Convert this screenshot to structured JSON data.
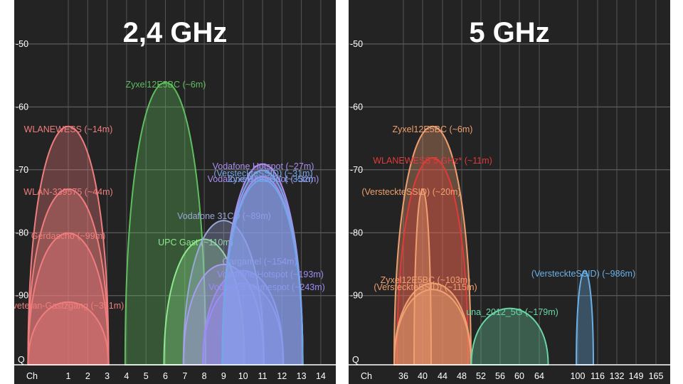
{
  "chart_data": [
    {
      "type": "area",
      "title": "2,4 GHz",
      "x_axis_label": "Ch",
      "y_axis_label": "Q",
      "x_ticks": [
        1,
        2,
        3,
        4,
        5,
        6,
        7,
        8,
        9,
        10,
        11,
        12,
        13,
        14
      ],
      "y_ticks": [
        -50,
        -60,
        -70,
        -80,
        -90
      ],
      "xlim": [
        -1.0,
        14.7
      ],
      "ylim": [
        -101,
        -43
      ],
      "grid": true,
      "series": [
        {
          "name": "WLANEWESS (~14m)",
          "channel": 1,
          "width": 4,
          "dbm": -63,
          "color": "#f07d7d"
        },
        {
          "name": "WLAN-339575 (~44m)",
          "channel": 1,
          "width": 4,
          "dbm": -73,
          "color": "#f07d7d"
        },
        {
          "name": "Gerdascho (~99m)",
          "channel": 1,
          "width": 4,
          "dbm": -80,
          "color": "#f07d7d"
        },
        {
          "name": "veteran-Gastzgang (~351m)",
          "channel": 1,
          "width": 4,
          "dbm": -91,
          "color": "#f07d7d"
        },
        {
          "name": "Zyxel12E5BC (~6m)",
          "channel": 6,
          "width": 4,
          "dbm": -56,
          "color": "#5fbe5f"
        },
        {
          "name": "UPC Gast (~110m)",
          "channel": 8,
          "width": 4,
          "dbm": -81,
          "color": "#8ee88e"
        },
        {
          "name": "Vodafone 31CD (~89m)",
          "channel": 9,
          "width": 4,
          "dbm": -78,
          "color": "#9aa6d8"
        },
        {
          "name": "Gargamel (~154m)",
          "channel": 9,
          "width": 4,
          "dbm": -85,
          "color": "#a99cf0"
        },
        {
          "name": "Vodafone Hotspot (~193m)",
          "channel": 10,
          "width": 4,
          "dbm": -86,
          "color": "#9c8cf5"
        },
        {
          "name": "Vodafone Homespot (~243m)",
          "channel": 10,
          "width": 4,
          "dbm": -88,
          "color": "#9c8cf5"
        },
        {
          "name": "Vodafone Hotspot (~27m)",
          "channel": 11,
          "width": 4,
          "dbm": -69,
          "color": "#a98ff0"
        },
        {
          "name": "(VersteckteSSID) (~31m)",
          "channel": 11,
          "width": 4,
          "dbm": -70,
          "color": "#7aa6e8"
        },
        {
          "name": "Vodafone Homespot (~32m)",
          "channel": 11,
          "width": 4,
          "dbm": -71,
          "color": "#a98ff0"
        },
        {
          "name": "Zyxel12E5BC (~35m)",
          "channel": 11,
          "width": 4,
          "dbm": -71.5,
          "color": "#6ea8e8"
        }
      ]
    },
    {
      "type": "area",
      "title": "5 GHz",
      "x_axis_label": "Ch",
      "y_axis_label": "Q",
      "x_ticks": [
        36,
        40,
        44,
        48,
        52,
        56,
        60,
        64,
        100,
        116,
        132,
        149,
        165
      ],
      "y_ticks": [
        -50,
        -60,
        -70,
        -80,
        -90
      ],
      "grid": true,
      "ylim": [
        -101,
        -43
      ],
      "series": [
        {
          "name": "Zyxel12E5BC (~6m)",
          "channel": 42,
          "dbm": -63,
          "color": "#f0a070"
        },
        {
          "name": "WLANEWESS 5 GHz* (~11m)",
          "channel": 42,
          "dbm": -68,
          "color": "#e03a3a"
        },
        {
          "name": "(VersteckteSSID) (~20m)",
          "channel": 40,
          "dbm": -73,
          "color": "#f0a070"
        },
        {
          "name": "Zyxel12E5BC (~103m)",
          "channel": 42,
          "dbm": -88,
          "color": "#f0a070"
        },
        {
          "name": "(VersteckteSSID) (~115m)",
          "channel": 42,
          "dbm": -89,
          "color": "#f0a070"
        },
        {
          "name": "una_2012_5G (~179m)",
          "channel": 58,
          "dbm": -92,
          "color": "#6ad6a6"
        },
        {
          "name": "(VersteckteSSID) (~986m)",
          "channel": 100,
          "dbm": -86,
          "color": "#6ab0e8"
        }
      ]
    }
  ]
}
